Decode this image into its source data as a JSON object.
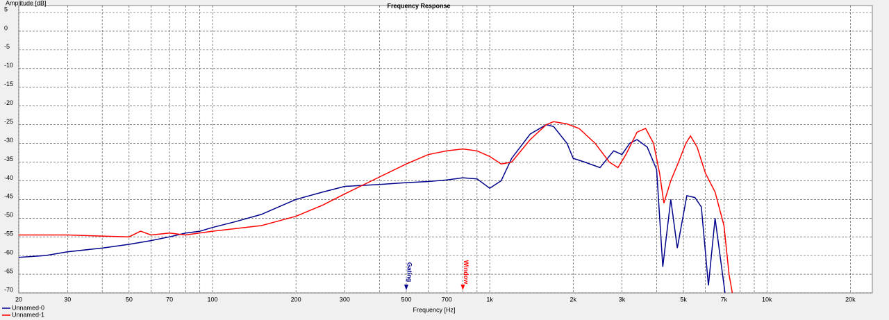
{
  "chart_data": {
    "type": "line",
    "title": "Frequency Response",
    "y_label": "Amplitude [dB]",
    "x_label": "Frequency [Hz]",
    "log_x": true,
    "grid": true,
    "legend": "bottom-left",
    "xlim": [
      20,
      24000
    ],
    "ylim": [
      -70,
      5
    ],
    "yticks": [
      5,
      0,
      -5,
      -10,
      -15,
      -20,
      -25,
      -30,
      -35,
      -40,
      -45,
      -50,
      -55,
      -60,
      -65,
      -70
    ],
    "xticks": [
      20,
      30,
      50,
      70,
      100,
      200,
      300,
      500,
      700,
      {
        "value": 1000,
        "label": "1k"
      },
      {
        "value": 2000,
        "label": "2k"
      },
      {
        "value": 3000,
        "label": "3k"
      },
      {
        "value": 5000,
        "label": "5k"
      },
      {
        "value": 7000,
        "label": "7k"
      },
      {
        "value": 10000,
        "label": "10k"
      },
      {
        "value": 20000,
        "label": "20k"
      }
    ],
    "x_minor_grid": [
      40,
      60,
      80,
      90,
      400,
      600,
      800,
      900,
      4000,
      6000,
      8000,
      9000
    ],
    "annotations": [
      {
        "text": "Gating",
        "x": 500,
        "color": "#00008b"
      },
      {
        "text": "Window",
        "x": 800,
        "color": "#ff0000"
      }
    ],
    "series": [
      {
        "name": "Unnamed-0",
        "color": "#00008b",
        "x": [
          20,
          25,
          30,
          40,
          50,
          60,
          70,
          80,
          90,
          100,
          120,
          150,
          200,
          250,
          300,
          400,
          500,
          600,
          700,
          800,
          900,
          1000,
          1100,
          1200,
          1400,
          1600,
          1700,
          1900,
          2000,
          2200,
          2500,
          2800,
          3000,
          3200,
          3400,
          3700,
          4000,
          4210,
          4500,
          4750,
          5140,
          5500,
          5800,
          6150,
          6500,
          7060
        ],
        "values": [
          -60.5,
          -60,
          -59,
          -58,
          -57,
          -56,
          -55,
          -54,
          -53.5,
          -52.5,
          -51,
          -49,
          -45,
          -43,
          -41.5,
          -41,
          -40.5,
          -40.2,
          -39.8,
          -39.2,
          -39.5,
          -42,
          -40,
          -34,
          -27.5,
          -25,
          -25.5,
          -30,
          -34,
          -35,
          -36.5,
          -32,
          -33,
          -30,
          -29,
          -31,
          -37,
          -63,
          -45,
          -58,
          -44,
          -44.5,
          -47,
          -68,
          -50,
          -70
        ]
      },
      {
        "name": "Unnamed-1",
        "color": "#ff0000",
        "x": [
          20,
          30,
          40,
          50,
          55,
          60,
          70,
          80,
          100,
          150,
          200,
          250,
          300,
          400,
          500,
          600,
          700,
          800,
          900,
          1000,
          1100,
          1200,
          1400,
          1600,
          1700,
          1900,
          2100,
          2400,
          2700,
          2900,
          3100,
          3400,
          3650,
          3900,
          4100,
          4250,
          4500,
          4800,
          5100,
          5300,
          5600,
          6000,
          6500,
          7000,
          7300,
          7500
        ],
        "values": [
          -54.5,
          -54.5,
          -54.8,
          -55,
          -53.5,
          -54.5,
          -54,
          -54.5,
          -53.5,
          -52,
          -49.5,
          -46.5,
          -43.5,
          -39,
          -35.5,
          -33,
          -32,
          -31.5,
          -32,
          -33.5,
          -35.5,
          -35,
          -29,
          -25,
          -24.2,
          -24.8,
          -26,
          -30,
          -35,
          -36.5,
          -33,
          -27,
          -26,
          -30,
          -38,
          -46,
          -40,
          -35,
          -30,
          -28,
          -31,
          -38,
          -43,
          -52,
          -65,
          -70
        ]
      }
    ]
  }
}
